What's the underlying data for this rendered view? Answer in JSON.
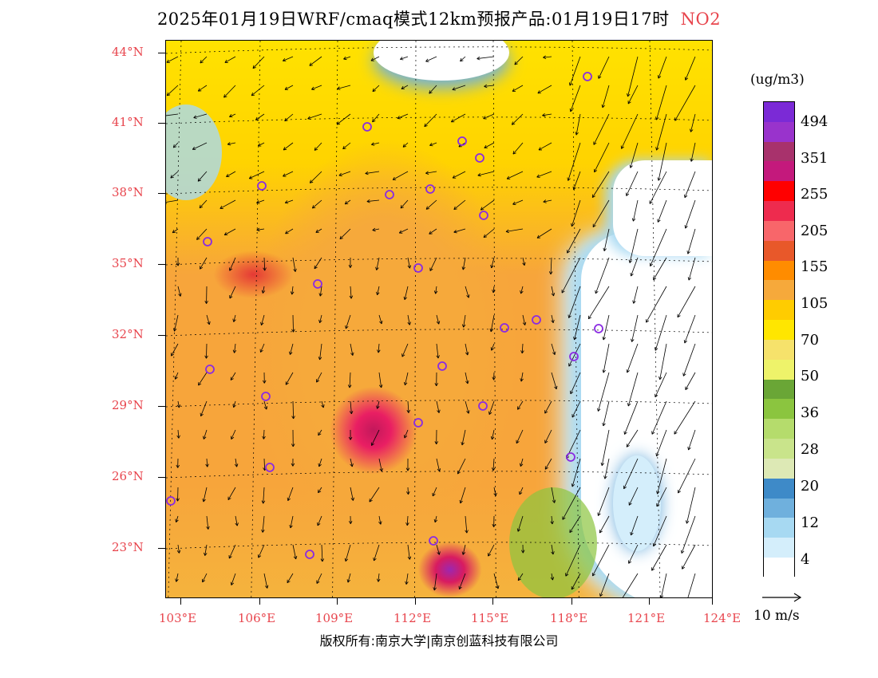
{
  "title": {
    "main": "2025年01月19日WRF/cmaq模式12km预报产品:01月19日17时",
    "pollutant": "NO2"
  },
  "y_axis": [
    "44°N",
    "41°N",
    "38°N",
    "35°N",
    "32°N",
    "29°N",
    "26°N",
    "23°N"
  ],
  "x_axis": [
    "103°E",
    "106°E",
    "109°E",
    "112°E",
    "115°E",
    "118°E",
    "121°E",
    "124°E"
  ],
  "legend": {
    "unit": "(ug/m3)",
    "labels": [
      "494",
      "351",
      "255",
      "205",
      "155",
      "105",
      "70",
      "50",
      "36",
      "28",
      "20",
      "12",
      "4"
    ],
    "colors": [
      "#7b2ad6",
      "#9933cc",
      "#a8326c",
      "#c4197c",
      "#ff0000",
      "#ee2b4e",
      "#f8666a",
      "#e8582a",
      "#ff8c00",
      "#f6a93b",
      "#ffcc00",
      "#ffe600",
      "#f6e26b",
      "#eef36a",
      "#6aa636",
      "#8bc53f",
      "#b5dc6c",
      "#c9e48b",
      "#dde9b5",
      "#3e8ac8",
      "#6fb0dd",
      "#a7d9f2",
      "#d4eefb",
      "#ffffff"
    ]
  },
  "wind_scale": {
    "label": "10 m/s"
  },
  "copyright": "版权所有:南京大学|南京创蓝科技有限公司"
}
